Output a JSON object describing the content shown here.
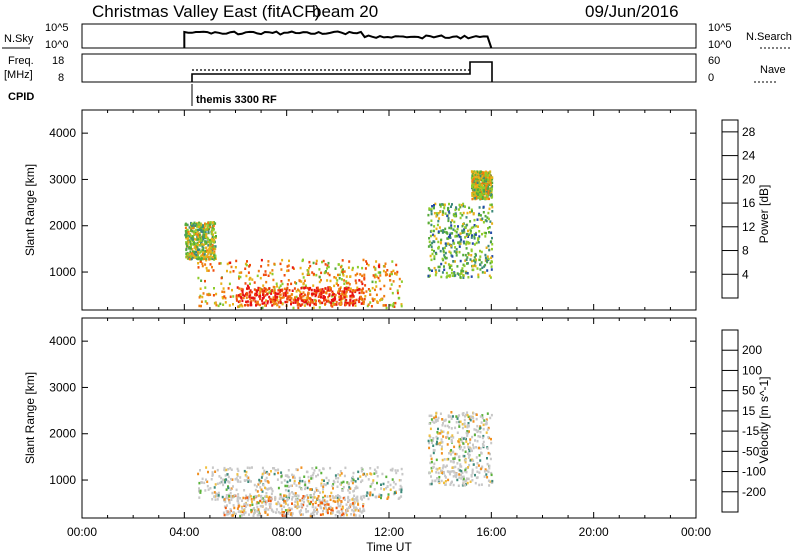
{
  "header": {
    "title": "Christmas Valley East (fitACF)",
    "beam": "beam 20",
    "date": "09/Jun/2016"
  },
  "params": {
    "nsky_label": "N.Sky",
    "freq_label_1": "Freq.",
    "freq_label_2": "[MHz]",
    "cpid_label": "CPID",
    "nsearch_label": "N.Search",
    "nave_label": "Nave",
    "nsky_ticks": [
      "10^5",
      "10^0"
    ],
    "nsky_right_ticks": [
      "10^5",
      "10^0"
    ],
    "freq_ticks": [
      "18",
      "8"
    ],
    "nave_ticks": [
      "60",
      "0"
    ],
    "cpid_text": "themis 3300 RF"
  },
  "chart_data": [
    {
      "type": "heatmap",
      "title": "",
      "xlabel": "",
      "ylabel": "Slant Range [km]",
      "x_range": [
        "00:00",
        "24:00"
      ],
      "ylim": [
        180,
        4500
      ],
      "y_ticks": [
        1000,
        2000,
        3000,
        4000
      ],
      "colorbar": {
        "label": "Power [dB]",
        "ticks": [
          4,
          8,
          12,
          16,
          20,
          24,
          28
        ],
        "range": [
          0,
          30
        ],
        "colors": [
          "#1d1df2",
          "#2149a8",
          "#3d8a7a",
          "#54aa3a",
          "#8fcc2c",
          "#e8b018",
          "#f07d10",
          "#f04a0a",
          "#e81010"
        ]
      },
      "data_coverage_hours": [
        4.0,
        16.0
      ],
      "regions": [
        {
          "name": "near-range band",
          "t": [
            4.5,
            12.5
          ],
          "range_km": [
            250,
            1300
          ],
          "power_db": 20
        },
        {
          "name": "strong core",
          "t": [
            6.0,
            11.0
          ],
          "range_km": [
            300,
            700
          ],
          "power_db": 26
        },
        {
          "name": "early arc",
          "t": [
            4.0,
            5.2
          ],
          "range_km": [
            1300,
            2100
          ],
          "power_db": 14
        },
        {
          "name": "late slanted echoes",
          "t": [
            13.5,
            16.0
          ],
          "range_km": [
            900,
            2500
          ],
          "power_db": 12
        },
        {
          "name": "far range patch",
          "t": [
            15.2,
            16.0
          ],
          "range_km": [
            2600,
            3200
          ],
          "power_db": 16
        }
      ]
    },
    {
      "type": "heatmap",
      "title": "",
      "xlabel": "Time UT",
      "ylabel": "Slant Range [km]",
      "x_range": [
        "00:00",
        "24:00"
      ],
      "x_ticks": [
        "00:00",
        "04:00",
        "08:00",
        "12:00",
        "16:00",
        "20:00",
        "00:00"
      ],
      "ylim": [
        180,
        4500
      ],
      "y_ticks": [
        1000,
        2000,
        3000,
        4000
      ],
      "colorbar": {
        "label": "Velocity [m s^-1]",
        "ticks": [
          200,
          100,
          50,
          15,
          -15,
          -50,
          -100,
          -200
        ],
        "colors": [
          "#1a2ad0",
          "#2e5fb0",
          "#3d8a7a",
          "#5ab23a",
          "#c8c8c8",
          "#f0c040",
          "#f09020",
          "#f05a10",
          "#e81010"
        ]
      },
      "data_coverage_hours": [
        4.0,
        16.0
      ],
      "regions": [
        {
          "name": "ground scatter band",
          "t": [
            4.5,
            12.5
          ],
          "range_km": [
            600,
            1300
          ],
          "velocity_ms": 0
        },
        {
          "name": "near-range flow",
          "t": [
            5.5,
            11.0
          ],
          "range_km": [
            250,
            700
          ],
          "velocity_ms": -60
        },
        {
          "name": "late slanted echoes",
          "t": [
            13.5,
            16.0
          ],
          "range_km": [
            900,
            2500
          ],
          "velocity_ms": 0
        }
      ]
    }
  ]
}
